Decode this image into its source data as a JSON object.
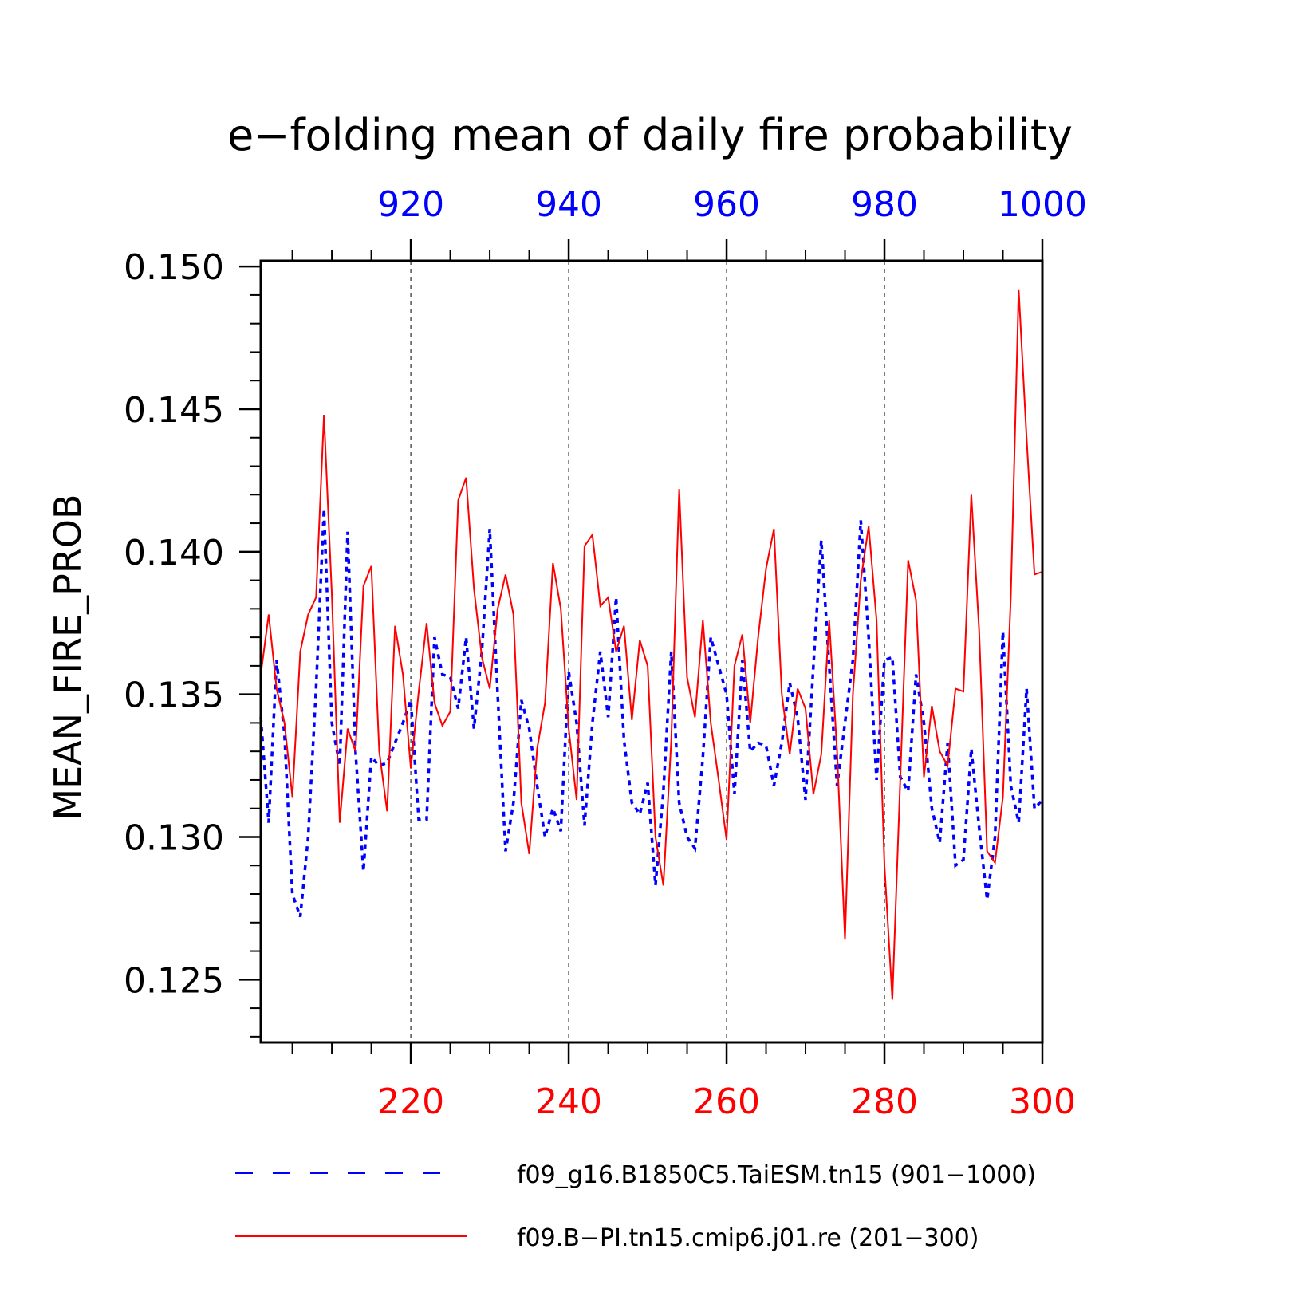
{
  "chart_data": {
    "type": "line",
    "title": "e−folding mean of daily fire probability",
    "ylabel": "MEAN_FIRE_PROB",
    "ylim": [
      0.1228,
      0.1502
    ],
    "yticks": [
      "0.125",
      "0.130",
      "0.135",
      "0.140",
      "0.145",
      "0.150"
    ],
    "bottom_axis": {
      "color": "#ff0000",
      "range": [
        201,
        300
      ],
      "ticks": [
        "220",
        "240",
        "260",
        "280",
        "300"
      ]
    },
    "top_axis": {
      "color": "#0000ff",
      "range": [
        901,
        1000
      ],
      "ticks": [
        "920",
        "940",
        "960",
        "980",
        "1000"
      ]
    },
    "grid": "dashed vertical lines at major bottom-axis ticks",
    "legend_position": "bottom",
    "series": [
      {
        "name": "f09_g16.B1850C5.TaiESM.tn15 (901−1000)",
        "color": "#0000ff",
        "style": "dashed",
        "x_axis": "top",
        "x_start": 901,
        "values": [
          0.1342,
          0.1305,
          0.1362,
          0.1336,
          0.128,
          0.1272,
          0.13,
          0.1352,
          0.1415,
          0.134,
          0.1325,
          0.1407,
          0.133,
          0.1288,
          0.1328,
          0.1325,
          0.1326,
          0.1333,
          0.134,
          0.1348,
          0.1306,
          0.1306,
          0.137,
          0.1357,
          0.1356,
          0.1345,
          0.137,
          0.1338,
          0.1365,
          0.1408,
          0.135,
          0.1295,
          0.1312,
          0.1348,
          0.1338,
          0.1318,
          0.13,
          0.131,
          0.1302,
          0.1358,
          0.134,
          0.1304,
          0.134,
          0.1365,
          0.1342,
          0.1384,
          0.1334,
          0.1312,
          0.1308,
          0.1319,
          0.1283,
          0.1316,
          0.1365,
          0.1312,
          0.13,
          0.1296,
          0.1328,
          0.137,
          0.136,
          0.135,
          0.1315,
          0.1362,
          0.133,
          0.1333,
          0.1332,
          0.1318,
          0.1333,
          0.1354,
          0.1342,
          0.1313,
          0.136,
          0.1404,
          0.136,
          0.1318,
          0.134,
          0.1362,
          0.1411,
          0.137,
          0.132,
          0.1362,
          0.1363,
          0.1321,
          0.1316,
          0.1357,
          0.134,
          0.131,
          0.1298,
          0.1333,
          0.129,
          0.1292,
          0.1331,
          0.1303,
          0.1278,
          0.13,
          0.1372,
          0.1318,
          0.1305,
          0.1352,
          0.131,
          0.1313
        ]
      },
      {
        "name": "f09.B−PI.tn15.cmip6.j01.re (201−300)",
        "color": "#ff0000",
        "style": "solid",
        "x_axis": "bottom",
        "x_start": 201,
        "values": [
          0.1357,
          0.1378,
          0.1352,
          0.134,
          0.1314,
          0.1365,
          0.1378,
          0.1384,
          0.1448,
          0.1385,
          0.1305,
          0.1338,
          0.133,
          0.1388,
          0.1395,
          0.133,
          0.1309,
          0.1374,
          0.1357,
          0.1324,
          0.1351,
          0.1375,
          0.1347,
          0.1339,
          0.1344,
          0.1418,
          0.1426,
          0.1387,
          0.1363,
          0.1352,
          0.138,
          0.1392,
          0.1378,
          0.1312,
          0.1294,
          0.1331,
          0.1347,
          0.1396,
          0.138,
          0.1338,
          0.1313,
          0.1402,
          0.1406,
          0.1381,
          0.1384,
          0.1365,
          0.1374,
          0.1341,
          0.1369,
          0.136,
          0.13,
          0.1283,
          0.1334,
          0.1422,
          0.1356,
          0.1342,
          0.1376,
          0.134,
          0.132,
          0.1299,
          0.136,
          0.1371,
          0.134,
          0.137,
          0.1394,
          0.1408,
          0.135,
          0.1329,
          0.1352,
          0.1345,
          0.1315,
          0.1329,
          0.1376,
          0.133,
          0.1264,
          0.135,
          0.139,
          0.1409,
          0.1376,
          0.129,
          0.1243,
          0.132,
          0.1397,
          0.1383,
          0.1321,
          0.1346,
          0.133,
          0.1325,
          0.1352,
          0.1351,
          0.142,
          0.1372,
          0.1295,
          0.1291,
          0.1314,
          0.1384,
          0.1492,
          0.144,
          0.1392,
          0.1393
        ]
      }
    ]
  }
}
